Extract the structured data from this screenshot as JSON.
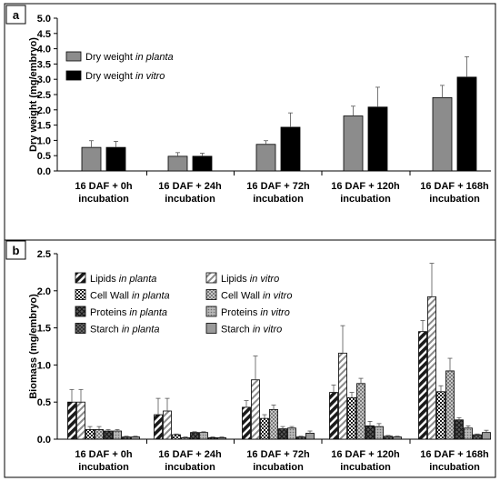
{
  "chart_data": [
    {
      "type": "bar",
      "panel_label": "a",
      "ylabel": "Dry weight (mg/embryo)",
      "ylim": [
        0,
        5
      ],
      "yticks": [
        "0.0",
        "0.5",
        "1.0",
        "1.5",
        "2.0",
        "2.5",
        "3.0",
        "3.5",
        "4.0",
        "4.5",
        "5.0"
      ],
      "categories": [
        [
          "16 DAF + 0h",
          "incubation"
        ],
        [
          "16 DAF + 24h",
          "incubation"
        ],
        [
          "16 DAF + 72h",
          "incubation"
        ],
        [
          "16 DAF + 120h",
          "incubation"
        ],
        [
          "16 DAF + 168h",
          "incubation"
        ]
      ],
      "legend_position": "top-left",
      "series": [
        {
          "name": "Dry weight",
          "name_italic": "in planta",
          "color": "#8c8c8c",
          "values": [
            0.77,
            0.48,
            0.87,
            1.8,
            2.4
          ],
          "errors": [
            0.22,
            0.12,
            0.12,
            0.32,
            0.4
          ]
        },
        {
          "name": "Dry weight",
          "name_italic": "in vitro",
          "color": "#000000",
          "values": [
            0.77,
            0.48,
            1.43,
            2.09,
            3.07
          ],
          "errors": [
            0.2,
            0.1,
            0.47,
            0.65,
            0.67
          ]
        }
      ]
    },
    {
      "type": "bar",
      "panel_label": "b",
      "ylabel": "Biomass (mg/embryo)",
      "ylim": [
        0,
        2.5
      ],
      "yticks": [
        "0.0",
        "0.5",
        "1.0",
        "1.5",
        "2.0",
        "2.5"
      ],
      "categories": [
        [
          "16 DAF + 0h",
          "incubation"
        ],
        [
          "16 DAF + 24h",
          "incubation"
        ],
        [
          "16 DAF + 72h",
          "incubation"
        ],
        [
          "16 DAF + 120h",
          "incubation"
        ],
        [
          "16 DAF + 168h",
          "incubation"
        ]
      ],
      "legend_position": "top-left",
      "series": [
        {
          "name": "Lipids",
          "name_italic": "in planta",
          "pattern": "diag-dark",
          "values": [
            0.5,
            0.33,
            0.43,
            0.63,
            1.45
          ],
          "errors": [
            0.17,
            0.22,
            0.09,
            0.1,
            0.15
          ]
        },
        {
          "name": "Lipids",
          "name_italic": "in vitro",
          "pattern": "diag-light",
          "values": [
            0.5,
            0.38,
            0.8,
            1.16,
            1.92
          ],
          "errors": [
            0.17,
            0.17,
            0.32,
            0.37,
            0.45
          ]
        },
        {
          "name": "Cell Wall",
          "name_italic": "in planta",
          "pattern": "check-dark",
          "values": [
            0.13,
            0.06,
            0.28,
            0.56,
            0.64
          ],
          "errors": [
            0.04,
            0.01,
            0.05,
            0.07,
            0.08
          ]
        },
        {
          "name": "Cell Wall",
          "name_italic": "in vitro",
          "pattern": "check-light",
          "values": [
            0.13,
            0.02,
            0.4,
            0.75,
            0.92
          ],
          "errors": [
            0.04,
            0.01,
            0.06,
            0.07,
            0.17
          ]
        },
        {
          "name": "Proteins",
          "name_italic": "in planta",
          "pattern": "cross-dark",
          "values": [
            0.11,
            0.09,
            0.14,
            0.18,
            0.26
          ],
          "errors": [
            0.02,
            0.01,
            0.03,
            0.06,
            0.03
          ]
        },
        {
          "name": "Proteins",
          "name_italic": "in vitro",
          "pattern": "dots-light",
          "values": [
            0.11,
            0.09,
            0.15,
            0.17,
            0.15
          ],
          "errors": [
            0.02,
            0.01,
            0.02,
            0.04,
            0.03
          ]
        },
        {
          "name": "Starch",
          "name_italic": "in planta",
          "pattern": "xcross-dark",
          "values": [
            0.03,
            0.02,
            0.03,
            0.04,
            0.06
          ],
          "errors": [
            0.01,
            0.01,
            0.01,
            0.01,
            0.01
          ]
        },
        {
          "name": "Starch",
          "name_italic": "in vitro",
          "pattern": "solid-gray",
          "values": [
            0.03,
            0.02,
            0.08,
            0.03,
            0.09
          ],
          "errors": [
            0.01,
            0.01,
            0.03,
            0.01,
            0.03
          ]
        }
      ]
    }
  ]
}
